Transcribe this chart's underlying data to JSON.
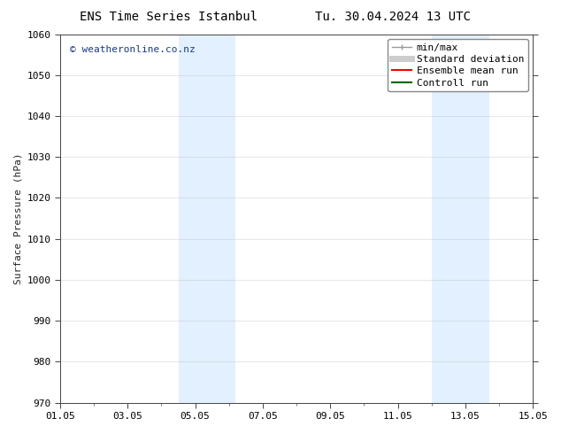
{
  "title_left": "ENS Time Series Istanbul",
  "title_right": "Tu. 30.04.2024 13 UTC",
  "ylabel": "Surface Pressure (hPa)",
  "ylim": [
    970,
    1060
  ],
  "yticks": [
    970,
    980,
    990,
    1000,
    1010,
    1020,
    1030,
    1040,
    1050,
    1060
  ],
  "xticks": [
    "01.05",
    "03.05",
    "05.05",
    "07.05",
    "09.05",
    "11.05",
    "13.05",
    "15.05"
  ],
  "xtick_positions": [
    0,
    2,
    4,
    6,
    8,
    10,
    12,
    14
  ],
  "xlim": [
    0,
    14
  ],
  "shaded_bands": [
    {
      "x_start": 3.5,
      "x_end": 5.2
    },
    {
      "x_start": 11.0,
      "x_end": 12.7
    }
  ],
  "shade_color": "#ddeeff",
  "shade_alpha": 0.85,
  "background_color": "#ffffff",
  "watermark_text": "© weatheronline.co.nz",
  "watermark_color": "#1a3a8a",
  "legend_entries": [
    {
      "label": "min/max",
      "color": "#999999",
      "lw": 1.0,
      "linestyle": "-",
      "marker": "|"
    },
    {
      "label": "Standard deviation",
      "color": "#cccccc",
      "lw": 5,
      "linestyle": "-"
    },
    {
      "label": "Ensemble mean run",
      "color": "#ff0000",
      "lw": 1.5,
      "linestyle": "-"
    },
    {
      "label": "Controll run",
      "color": "#006600",
      "lw": 1.5,
      "linestyle": "-"
    }
  ],
  "grid_color": "#bbbbbb",
  "grid_alpha": 0.5,
  "tick_color": "#444444",
  "spine_color": "#444444",
  "font_size_title": 10,
  "font_size_axis": 8,
  "font_size_tick": 8,
  "font_size_legend": 8,
  "font_size_watermark": 8
}
